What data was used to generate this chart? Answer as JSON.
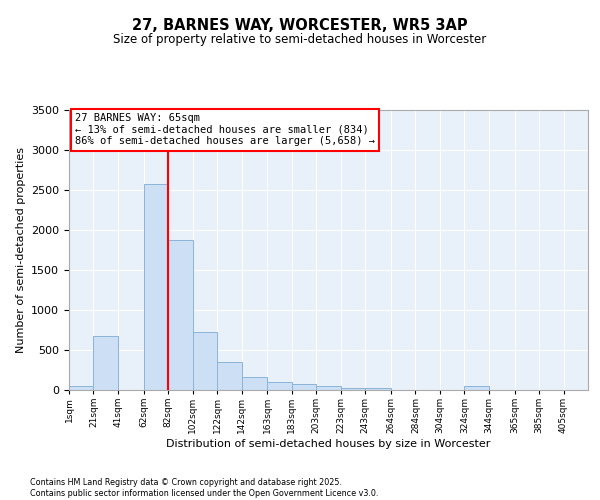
{
  "title_line1": "27, BARNES WAY, WORCESTER, WR5 3AP",
  "title_line2": "Size of property relative to semi-detached houses in Worcester",
  "xlabel": "Distribution of semi-detached houses by size in Worcester",
  "ylabel": "Number of semi-detached properties",
  "categories": [
    "1sqm",
    "21sqm",
    "41sqm",
    "62sqm",
    "82sqm",
    "102sqm",
    "122sqm",
    "142sqm",
    "163sqm",
    "183sqm",
    "203sqm",
    "223sqm",
    "243sqm",
    "264sqm",
    "284sqm",
    "304sqm",
    "324sqm",
    "344sqm",
    "365sqm",
    "385sqm",
    "405sqm"
  ],
  "bar_lefts": [
    1,
    21,
    41,
    62,
    82,
    102,
    122,
    142,
    163,
    183,
    203,
    223,
    243,
    264,
    284,
    304,
    324,
    344,
    365,
    385
  ],
  "bar_rights": [
    21,
    41,
    62,
    82,
    102,
    122,
    142,
    163,
    183,
    203,
    223,
    243,
    264,
    284,
    304,
    324,
    344,
    365,
    385,
    405
  ],
  "bar_heights": [
    50,
    670,
    0,
    2580,
    1870,
    730,
    350,
    160,
    100,
    80,
    50,
    30,
    25,
    5,
    0,
    0,
    50,
    0,
    0,
    0
  ],
  "bar_color": "#cddff5",
  "bar_edge_color": "#8ab4d8",
  "property_x": 82,
  "property_line_color": "red",
  "ylim": [
    0,
    3500
  ],
  "yticks": [
    0,
    500,
    1000,
    1500,
    2000,
    2500,
    3000,
    3500
  ],
  "annotation_title": "27 BARNES WAY: 65sqm",
  "annotation_line1": "← 13% of semi-detached houses are smaller (834)",
  "annotation_line2": "86% of semi-detached houses are larger (5,658) →",
  "footer_line1": "Contains HM Land Registry data © Crown copyright and database right 2025.",
  "footer_line2": "Contains public sector information licensed under the Open Government Licence v3.0.",
  "background_color": "#e8f0fa",
  "grid_color": "#ffffff",
  "xlim_left": 1,
  "xlim_right": 425
}
